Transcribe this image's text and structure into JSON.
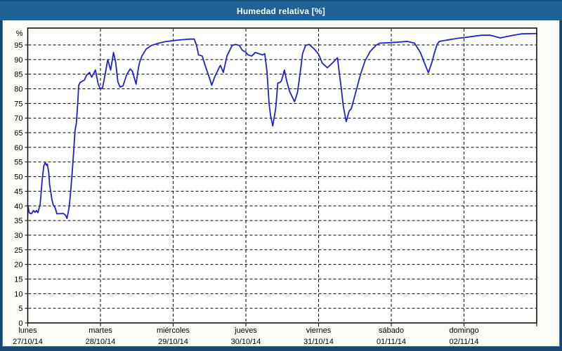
{
  "window": {
    "title": "Humedad relativa [%]"
  },
  "colors": {
    "titlebar_bg": "#1E6296",
    "frame": "#17466F",
    "frame_light": "#4377A8",
    "content_bg": "#FCFCF6",
    "plot_bg": "#FFFFFF",
    "line": "#2121CB",
    "grid": "#000000",
    "text": "#000000",
    "title_text": "#FFFFFF"
  },
  "chart_data": {
    "type": "line",
    "title": "Humedad relativa [%]",
    "ylabel": "%",
    "ylim": [
      0,
      100
    ],
    "yticks": [
      0,
      5,
      10,
      15,
      20,
      25,
      30,
      35,
      40,
      45,
      50,
      55,
      60,
      65,
      70,
      75,
      80,
      85,
      90,
      95
    ],
    "grid": "dashed",
    "legend": "none",
    "x_unit": "days from lunes 27/10/14 00:00",
    "xlim": [
      0,
      7
    ],
    "x_days": [
      {
        "name": "lunes",
        "date": "27/10/14"
      },
      {
        "name": "martes",
        "date": "28/10/14"
      },
      {
        "name": "miércoles",
        "date": "29/10/14"
      },
      {
        "name": "jueves",
        "date": "30/10/14"
      },
      {
        "name": "viernes",
        "date": "31/10/14"
      },
      {
        "name": "sábado",
        "date": "01/11/14"
      },
      {
        "name": "domingo",
        "date": "02/11/14"
      }
    ],
    "series": [
      {
        "name": "Humedad relativa",
        "points": [
          [
            0,
            40.2
          ],
          [
            0.02,
            37.6
          ],
          [
            0.05,
            37.3
          ],
          [
            0.08,
            38.4
          ],
          [
            0.1,
            37.8
          ],
          [
            0.12,
            38.4
          ],
          [
            0.14,
            37.7
          ],
          [
            0.17,
            40.4
          ],
          [
            0.2,
            49.2
          ],
          [
            0.22,
            53.6
          ],
          [
            0.24,
            54.8
          ],
          [
            0.26,
            53.8
          ],
          [
            0.27,
            54.3
          ],
          [
            0.29,
            51.2
          ],
          [
            0.3,
            47.6
          ],
          [
            0.33,
            42.4
          ],
          [
            0.35,
            40.4
          ],
          [
            0.38,
            39.2
          ],
          [
            0.4,
            37.3
          ],
          [
            0.49,
            37.4
          ],
          [
            0.52,
            36.8
          ],
          [
            0.54,
            35.7
          ],
          [
            0.57,
            39.6
          ],
          [
            0.59,
            45
          ],
          [
            0.61,
            50.8
          ],
          [
            0.63,
            58
          ],
          [
            0.65,
            65.6
          ],
          [
            0.67,
            68.5
          ],
          [
            0.69,
            76
          ],
          [
            0.7,
            81.1
          ],
          [
            0.72,
            82.2
          ],
          [
            0.78,
            83
          ],
          [
            0.81,
            84.7
          ],
          [
            0.85,
            85.6
          ],
          [
            0.88,
            84
          ],
          [
            0.93,
            86.4
          ],
          [
            0.97,
            81.5
          ],
          [
            1,
            79.9
          ],
          [
            1.03,
            80.5
          ],
          [
            1.07,
            85.6
          ],
          [
            1.1,
            90
          ],
          [
            1.14,
            86.4
          ],
          [
            1.18,
            92.4
          ],
          [
            1.21,
            89
          ],
          [
            1.24,
            82.4
          ],
          [
            1.27,
            80.6
          ],
          [
            1.31,
            81
          ],
          [
            1.36,
            84.8
          ],
          [
            1.41,
            86.8
          ],
          [
            1.44,
            86
          ],
          [
            1.49,
            81.6
          ],
          [
            1.52,
            86.8
          ],
          [
            1.54,
            89.2
          ],
          [
            1.57,
            91.2
          ],
          [
            1.63,
            93.6
          ],
          [
            1.7,
            94.8
          ],
          [
            1.8,
            95.6
          ],
          [
            1.89,
            96.1
          ],
          [
            2.01,
            96.5
          ],
          [
            2.13,
            96.8
          ],
          [
            2.23,
            97
          ],
          [
            2.29,
            97
          ],
          [
            2.32,
            95
          ],
          [
            2.35,
            91.6
          ],
          [
            2.4,
            91.2
          ],
          [
            2.44,
            88
          ],
          [
            2.5,
            83.6
          ],
          [
            2.53,
            81.2
          ],
          [
            2.57,
            84
          ],
          [
            2.64,
            87.6
          ],
          [
            2.65,
            88
          ],
          [
            2.69,
            85.6
          ],
          [
            2.74,
            91.2
          ],
          [
            2.81,
            94.8
          ],
          [
            2.86,
            95.2
          ],
          [
            2.91,
            94.8
          ],
          [
            2.95,
            93.2
          ],
          [
            3,
            92.5
          ],
          [
            3.03,
            91.6
          ],
          [
            3.08,
            91.2
          ],
          [
            3.13,
            92.4
          ],
          [
            3.18,
            92
          ],
          [
            3.23,
            91.6
          ],
          [
            3.26,
            92
          ],
          [
            3.29,
            86
          ],
          [
            3.32,
            74.8
          ],
          [
            3.34,
            70.8
          ],
          [
            3.37,
            67.3
          ],
          [
            3.41,
            73.2
          ],
          [
            3.44,
            82
          ],
          [
            3.47,
            82.2
          ],
          [
            3.49,
            82.8
          ],
          [
            3.53,
            86.4
          ],
          [
            3.56,
            82.8
          ],
          [
            3.6,
            79.2
          ],
          [
            3.67,
            75.6
          ],
          [
            3.71,
            78.8
          ],
          [
            3.75,
            86
          ],
          [
            3.78,
            92
          ],
          [
            3.82,
            94.8
          ],
          [
            3.87,
            95.2
          ],
          [
            3.94,
            93.6
          ],
          [
            4,
            91.8
          ],
          [
            4.05,
            88.8
          ],
          [
            4.12,
            87.2
          ],
          [
            4.19,
            88.8
          ],
          [
            4.26,
            90.6
          ],
          [
            4.29,
            84.4
          ],
          [
            4.31,
            80.6
          ],
          [
            4.34,
            74
          ],
          [
            4.38,
            68.8
          ],
          [
            4.42,
            72.4
          ],
          [
            4.45,
            73.2
          ],
          [
            4.52,
            79.6
          ],
          [
            4.58,
            85.2
          ],
          [
            4.64,
            89.6
          ],
          [
            4.71,
            92.8
          ],
          [
            4.79,
            94.9
          ],
          [
            4.84,
            95.6
          ],
          [
            5,
            95.8
          ],
          [
            5.22,
            96.2
          ],
          [
            5.32,
            95.6
          ],
          [
            5.4,
            92.4
          ],
          [
            5.47,
            88
          ],
          [
            5.51,
            85.5
          ],
          [
            5.56,
            89.2
          ],
          [
            5.59,
            92
          ],
          [
            5.63,
            95.2
          ],
          [
            5.66,
            96.2
          ],
          [
            5.82,
            96.9
          ],
          [
            5.95,
            97.4
          ],
          [
            6,
            97.5
          ],
          [
            6.24,
            98.3
          ],
          [
            6.36,
            98.3
          ],
          [
            6.5,
            97.4
          ],
          [
            6.65,
            98.2
          ],
          [
            6.79,
            98.8
          ],
          [
            7,
            98.9
          ]
        ]
      }
    ]
  }
}
